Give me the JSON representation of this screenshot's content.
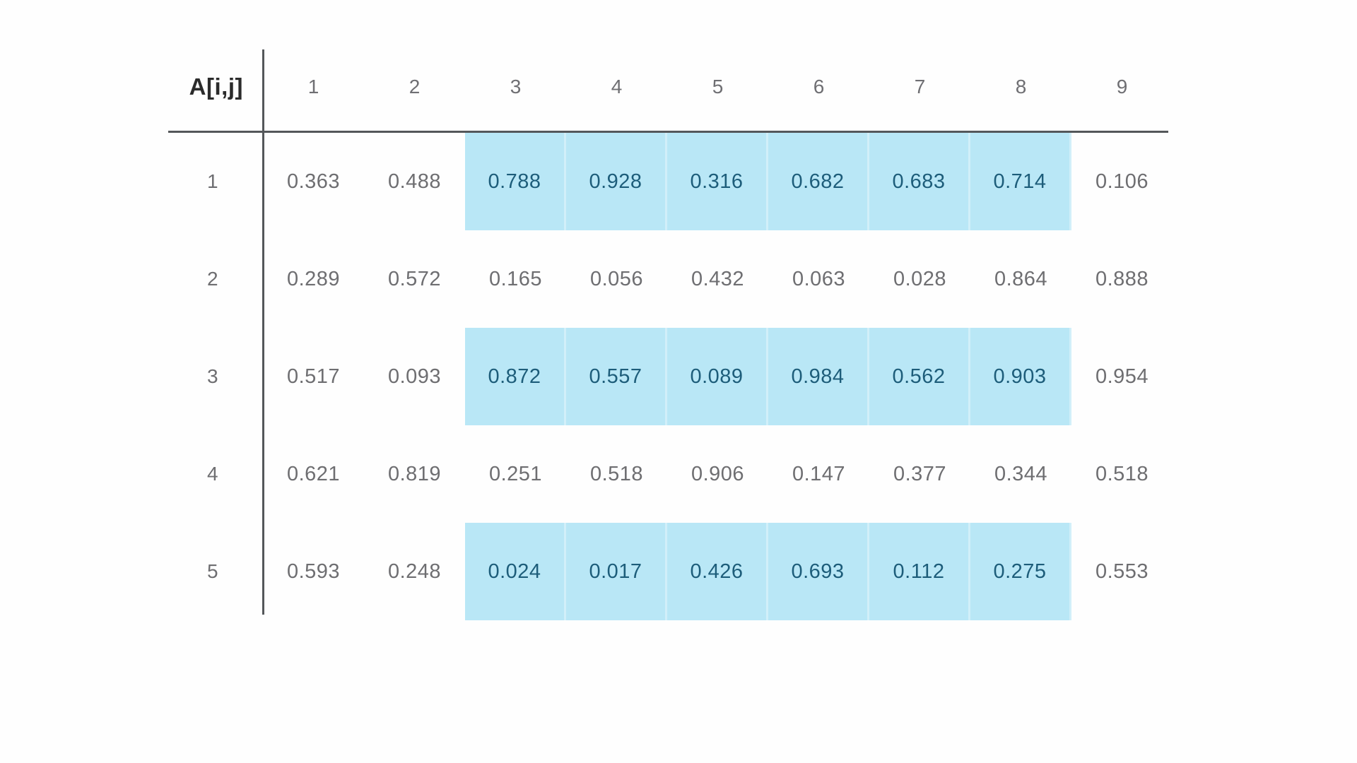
{
  "chart_data": {
    "type": "table",
    "title": "A[i,j]",
    "columns": [
      "1",
      "2",
      "3",
      "4",
      "5",
      "6",
      "7",
      "8",
      "9"
    ],
    "rows_index": [
      "1",
      "2",
      "3",
      "4",
      "5"
    ],
    "values": [
      [
        0.363,
        0.488,
        0.788,
        0.928,
        0.316,
        0.682,
        0.683,
        0.714,
        0.106
      ],
      [
        0.289,
        0.572,
        0.165,
        0.056,
        0.432,
        0.063,
        0.028,
        0.864,
        0.888
      ],
      [
        0.517,
        0.093,
        0.872,
        0.557,
        0.089,
        0.984,
        0.562,
        0.903,
        0.954
      ],
      [
        0.621,
        0.819,
        0.251,
        0.518,
        0.906,
        0.147,
        0.377,
        0.344,
        0.518
      ],
      [
        0.593,
        0.248,
        0.024,
        0.017,
        0.426,
        0.693,
        0.112,
        0.275,
        0.553
      ]
    ],
    "value_decimals": 3,
    "highlight": {
      "rows": [
        1,
        3,
        5
      ],
      "columns": [
        3,
        4,
        5,
        6,
        7,
        8
      ],
      "color": "#b9e7f6"
    },
    "layout": {
      "corner_label_position": "top-left",
      "header_rule": true,
      "row_label_rule": true,
      "grid": false
    }
  },
  "colors": {
    "highlight_bg": "#b9e7f6",
    "highlight_text": "#1d5d7a",
    "text": "#6e6e71",
    "header_text": "#6f6f73",
    "corner_text": "#2b2b2b",
    "rule": "#54575a",
    "background": "#fefefe"
  }
}
